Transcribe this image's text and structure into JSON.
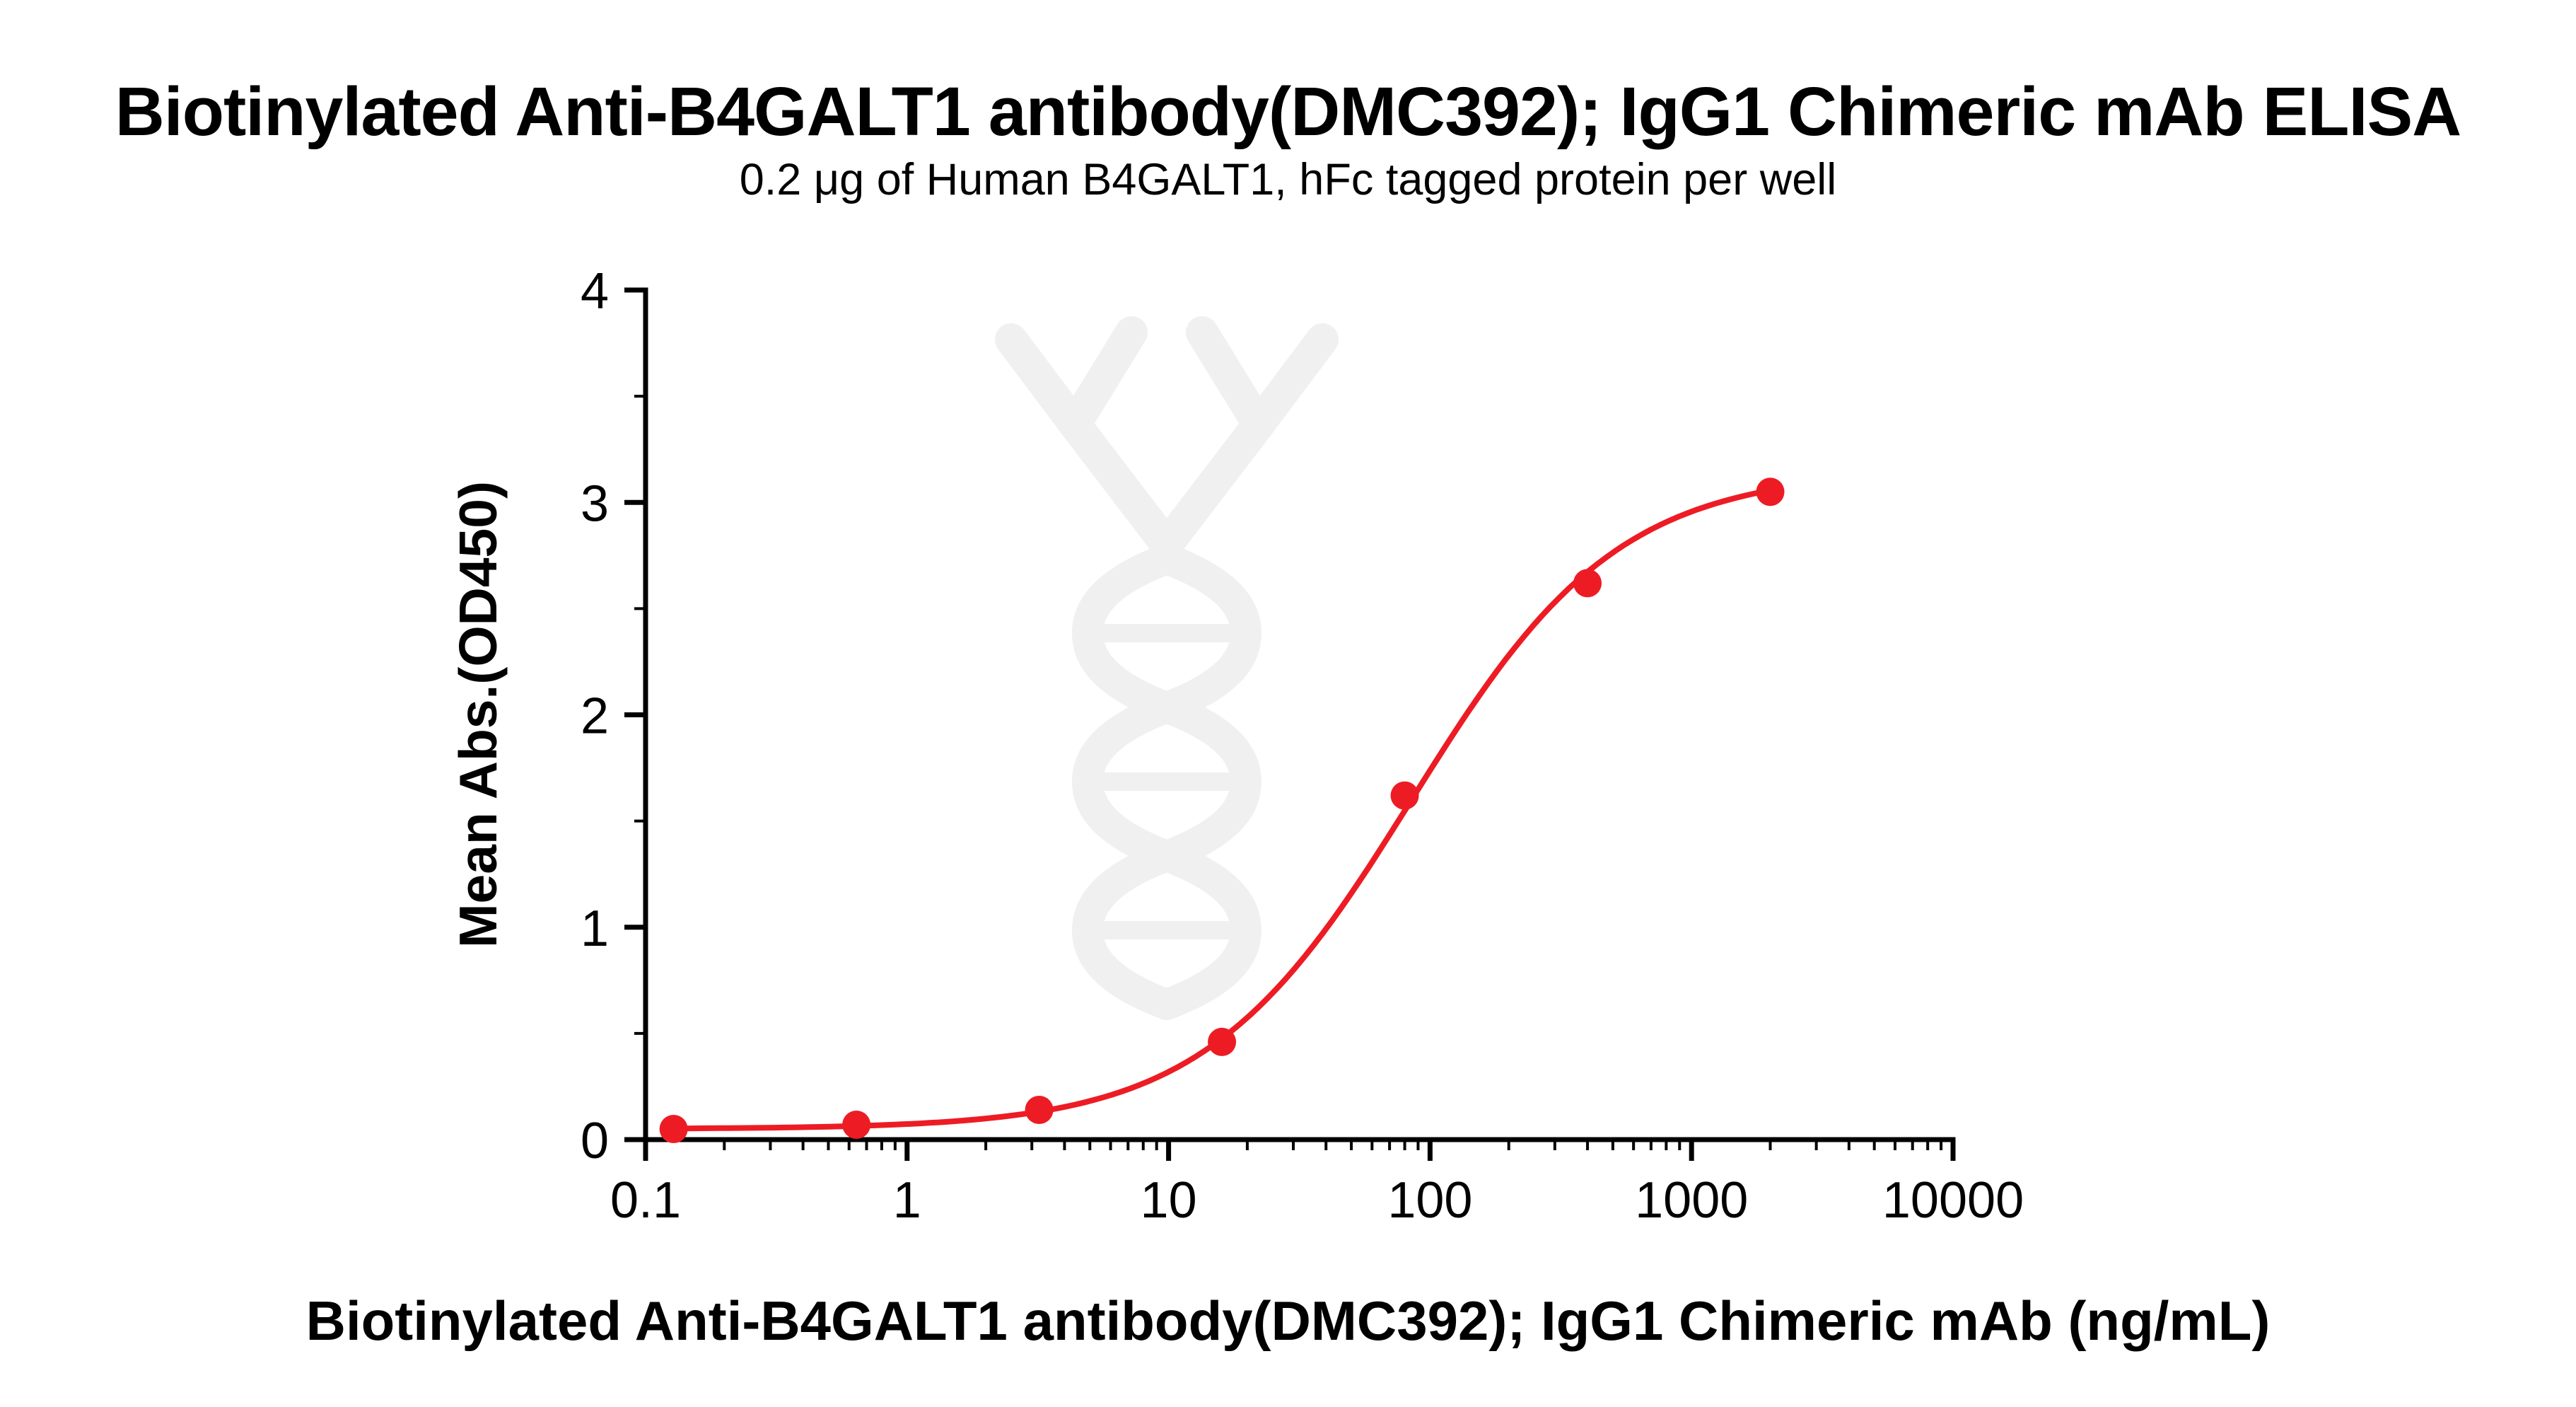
{
  "title": "Biotinylated Anti-B4GALT1 antibody(DMC392); IgG1 Chimeric mAb ELISA",
  "subtitle": "0.2 μg of Human B4GALT1, hFc tagged protein per well",
  "watermark": {
    "name": "dna-antibody-watermark",
    "color": "#f0f0f0"
  },
  "chart_data": {
    "type": "scatter",
    "title": "Biotinylated Anti-B4GALT1 antibody(DMC392); IgG1 Chimeric mAb ELISA",
    "subtitle": "0.2 μg of Human B4GALT1, hFc tagged protein per well",
    "xlabel": "Biotinylated Anti-B4GALT1 antibody(DMC392); IgG1 Chimeric mAb (ng/mL)",
    "ylabel": "Mean Abs.(OD450)",
    "xscale": "log",
    "xlim": [
      0.1,
      10000
    ],
    "ylim": [
      0,
      4
    ],
    "x_ticks": [
      0.1,
      1,
      10,
      100,
      1000,
      10000
    ],
    "x_tick_labels": [
      "0.1",
      "1",
      "10",
      "100",
      "1000",
      "10000"
    ],
    "y_ticks": [
      0,
      1,
      2,
      3,
      4
    ],
    "y_tick_labels": [
      "0",
      "1",
      "2",
      "3",
      "4"
    ],
    "y_minor_ticks": [
      0.5,
      1.5,
      2.5,
      3.5
    ],
    "x": [
      0.128,
      0.64,
      3.2,
      16,
      80,
      400,
      2000
    ],
    "y": [
      0.05,
      0.07,
      0.14,
      0.46,
      1.62,
      2.62,
      3.05
    ],
    "curve_fit": {
      "model": "4PL",
      "bottom": 0.05,
      "top": 3.15,
      "ec50": 85,
      "hill": 1.1
    },
    "point_color": "#ED1C24",
    "line_color": "#ED1C24",
    "axis_color": "#000000",
    "grid": "off",
    "legend": "none"
  }
}
